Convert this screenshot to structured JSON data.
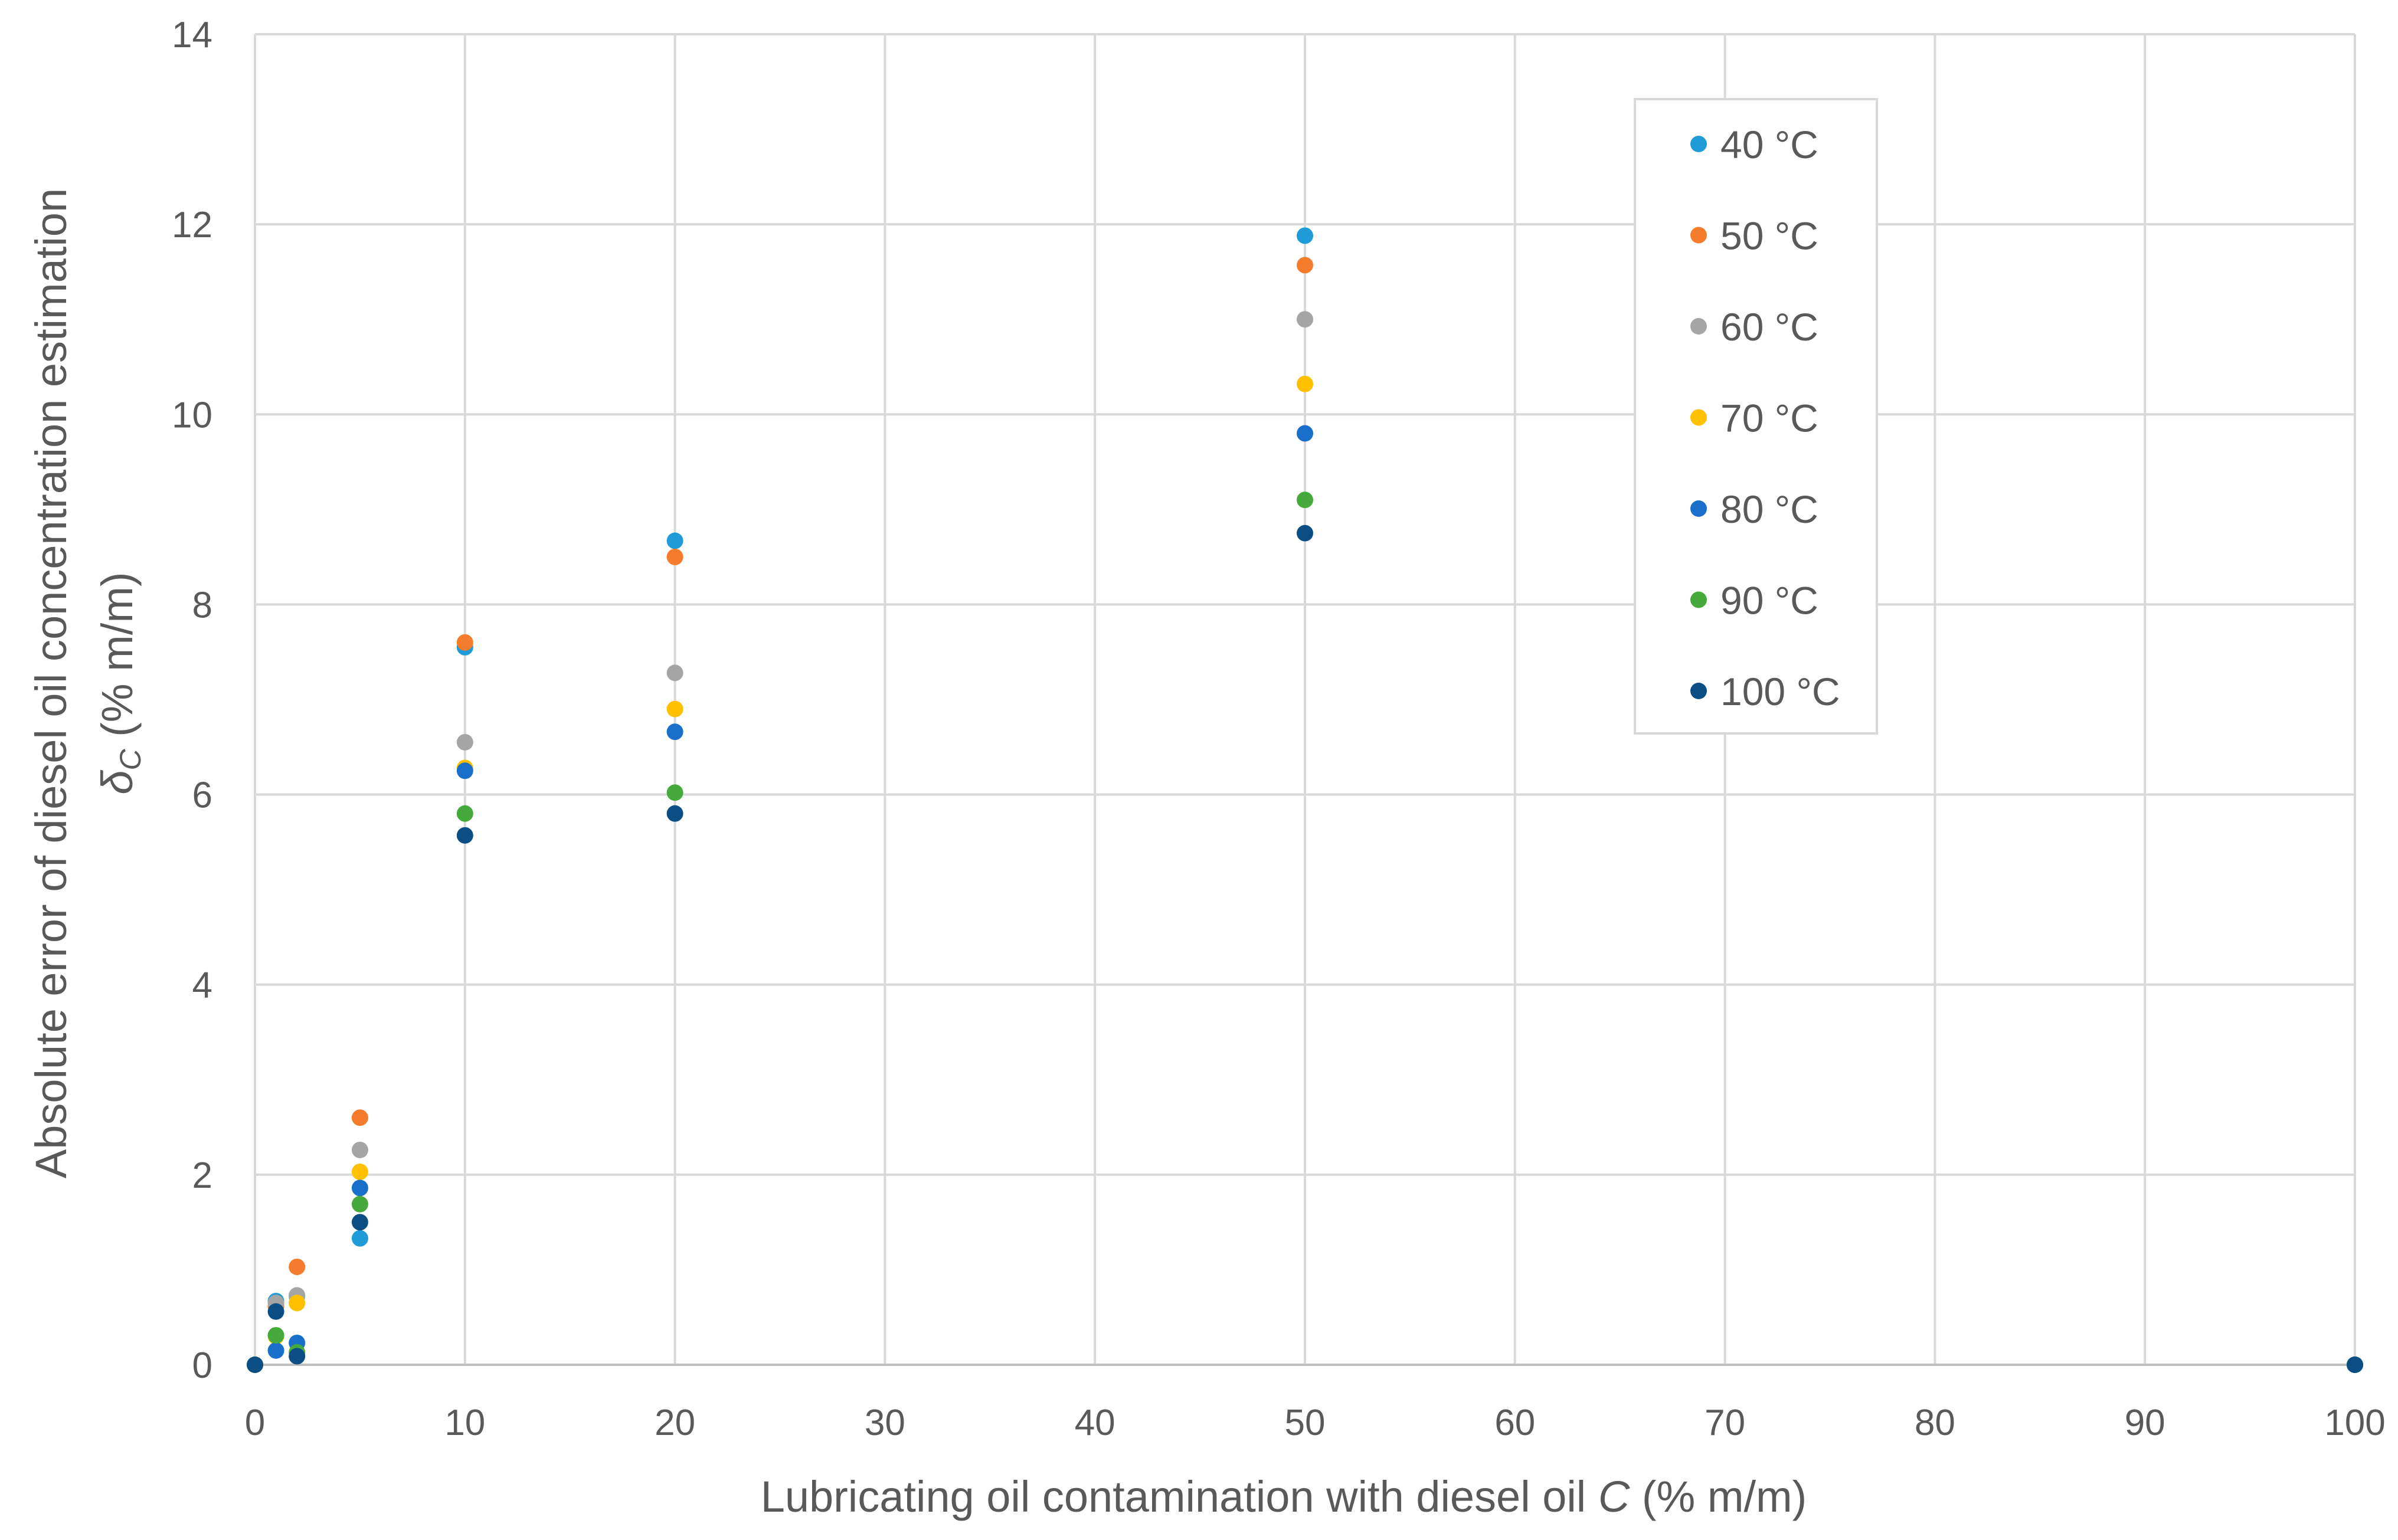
{
  "chart_data": {
    "type": "scatter",
    "title": "",
    "xlabel": "Lubricating oil contamination with diesel oil C (% m/m)",
    "xlabel_parts": {
      "before": "Lubricating oil contamination with diesel oil ",
      "italic": "C",
      "after": " (% m/m)"
    },
    "ylabel": "Absolute error of diesel oil concentration estimation δC (% m/m)",
    "ylabel_line1": "Absolute error of diesel oil concentration estimation",
    "ylabel_line2_parts": {
      "symbol": "δ",
      "subscript": "C",
      "after": " (% m/m)"
    },
    "xlim": [
      0,
      100
    ],
    "ylim": [
      0,
      14
    ],
    "xticks": [
      0,
      10,
      20,
      30,
      40,
      50,
      60,
      70,
      80,
      90,
      100
    ],
    "yticks": [
      0,
      2,
      4,
      6,
      8,
      10,
      12,
      14
    ],
    "grid": true,
    "legend_position": "top-right",
    "series": [
      {
        "name": "40 °C",
        "color": "#1f9bd7",
        "x": [
          0,
          1,
          2,
          5,
          10,
          20,
          50,
          100
        ],
        "y": [
          0,
          0.67,
          0.72,
          1.33,
          7.55,
          8.67,
          11.88,
          0
        ]
      },
      {
        "name": "50 °C",
        "color": "#f47c2c",
        "x": [
          0,
          1,
          2,
          5,
          10,
          20,
          50,
          100
        ],
        "y": [
          0,
          0.62,
          1.03,
          2.6,
          7.6,
          8.5,
          11.57,
          0
        ]
      },
      {
        "name": "60 °C",
        "color": "#a5a5a5",
        "x": [
          0,
          1,
          2,
          5,
          10,
          20,
          50,
          100
        ],
        "y": [
          0,
          0.65,
          0.73,
          2.26,
          6.55,
          7.28,
          11.0,
          0
        ]
      },
      {
        "name": "70 °C",
        "color": "#ffc000",
        "x": [
          0,
          1,
          2,
          5,
          10,
          20,
          50,
          100
        ],
        "y": [
          0,
          0.3,
          0.65,
          2.03,
          6.28,
          6.9,
          10.32,
          0
        ]
      },
      {
        "name": "80 °C",
        "color": "#1a6fcb",
        "x": [
          0,
          1,
          2,
          5,
          10,
          20,
          50,
          100
        ],
        "y": [
          0,
          0.15,
          0.23,
          1.86,
          6.25,
          6.66,
          9.8,
          0
        ]
      },
      {
        "name": "90 °C",
        "color": "#46a93c",
        "x": [
          0,
          1,
          2,
          5,
          10,
          20,
          50,
          100
        ],
        "y": [
          0,
          0.31,
          0.13,
          1.69,
          5.8,
          6.02,
          9.1,
          0
        ]
      },
      {
        "name": "100 °C",
        "color": "#0a4e84",
        "x": [
          0,
          1,
          2,
          5,
          10,
          20,
          50,
          100
        ],
        "y": [
          0,
          0.56,
          0.09,
          1.5,
          5.57,
          5.8,
          8.75,
          0
        ]
      }
    ]
  }
}
